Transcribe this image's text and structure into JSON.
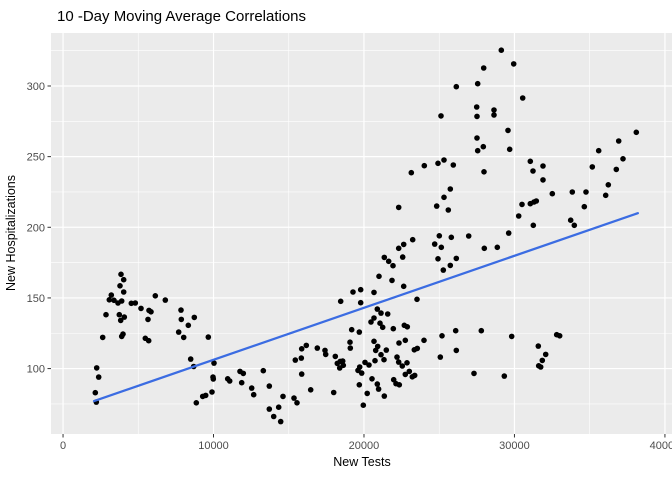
{
  "chart_data": {
    "type": "scatter",
    "title": "10 -Day Moving Average Correlations",
    "xlabel": "New Tests",
    "ylabel": "New Hospitalizations",
    "x_ticks": [
      0,
      10000,
      20000,
      30000,
      40000
    ],
    "y_ticks": [
      100,
      150,
      200,
      250,
      300
    ],
    "x_minor": [
      5000,
      15000,
      25000,
      35000
    ],
    "y_minor": [
      75,
      125,
      175,
      225,
      275,
      325
    ],
    "xlim": [
      -800,
      40470
    ],
    "ylim": [
      53.7,
      337.5
    ],
    "grid": true,
    "legend": "none",
    "trend_line": {
      "type": "linear",
      "x1": 2060,
      "y1": 77,
      "x2": 38200,
      "y2": 210
    },
    "points": [
      [
        29127,
        325.3
      ],
      [
        29951,
        315.6
      ],
      [
        27957,
        312.7
      ],
      [
        27559,
        301.6
      ],
      [
        26136,
        299.5
      ],
      [
        30549,
        291.5
      ],
      [
        27492,
        285.1
      ],
      [
        28642,
        283.0
      ],
      [
        28642,
        279.5
      ],
      [
        27512,
        278.5
      ],
      [
        25119,
        278.8
      ],
      [
        29572,
        268.6
      ],
      [
        27512,
        263.2
      ],
      [
        27930,
        257.0
      ],
      [
        27559,
        254.2
      ],
      [
        29685,
        255.2
      ],
      [
        38096,
        267.2
      ],
      [
        36926,
        261.1
      ],
      [
        35597,
        254.2
      ],
      [
        37212,
        248.5
      ],
      [
        31054,
        246.7
      ],
      [
        31898,
        243.4
      ],
      [
        35174,
        242.7
      ],
      [
        36767,
        241.0
      ],
      [
        25318,
        247.6
      ],
      [
        24919,
        245.3
      ],
      [
        24009,
        243.6
      ],
      [
        25936,
        244.1
      ],
      [
        23145,
        238.6
      ],
      [
        31233,
        239.8
      ],
      [
        27977,
        239.3
      ],
      [
        31898,
        233.5
      ],
      [
        36235,
        230.1
      ],
      [
        25737,
        227.1
      ],
      [
        32516,
        223.8
      ],
      [
        33845,
        225.0
      ],
      [
        34755,
        225.0
      ],
      [
        36062,
        222.6
      ],
      [
        25318,
        221.2
      ],
      [
        24832,
        215.0
      ],
      [
        22307,
        214.1
      ],
      [
        25603,
        212.2
      ],
      [
        30503,
        216.2
      ],
      [
        31300,
        217.9
      ],
      [
        31054,
        216.7
      ],
      [
        31453,
        218.6
      ],
      [
        30284,
        208.0
      ],
      [
        34642,
        214.6
      ],
      [
        31253,
        201.4
      ],
      [
        33739,
        205.0
      ],
      [
        33978,
        201.4
      ],
      [
        3854,
        166.7
      ],
      [
        4033,
        162.9
      ],
      [
        3787,
        158.6
      ],
      [
        4033,
        154.2
      ],
      [
        3210,
        152.0
      ],
      [
        3077,
        148.7
      ],
      [
        3389,
        148.3
      ],
      [
        3900,
        147.8
      ],
      [
        3655,
        146.4
      ],
      [
        4539,
        146.2
      ],
      [
        4804,
        146.4
      ],
      [
        2857,
        138.1
      ],
      [
        3741,
        138.1
      ],
      [
        4073,
        136.4
      ],
      [
        3834,
        134.1
      ],
      [
        5183,
        142.6
      ],
      [
        5715,
        141.2
      ],
      [
        6133,
        151.5
      ],
      [
        6798,
        148.5
      ],
      [
        5648,
        134.8
      ],
      [
        5848,
        140.2
      ],
      [
        2638,
        122.1
      ],
      [
        3987,
        124.4
      ],
      [
        3900,
        122.8
      ],
      [
        5468,
        121.4
      ],
      [
        5694,
        119.7
      ],
      [
        7841,
        141.4
      ],
      [
        7861,
        134.8
      ],
      [
        8725,
        136.2
      ],
      [
        8326,
        130.6
      ],
      [
        7688,
        125.8
      ],
      [
        8021,
        122.1
      ],
      [
        9655,
        122.3
      ],
      [
        8486,
        106.7
      ],
      [
        8685,
        101.5
      ],
      [
        2239,
        100.5
      ],
      [
        2372,
        94.0
      ],
      [
        2146,
        82.9
      ],
      [
        2213,
        76.3
      ],
      [
        8858,
        75.8
      ],
      [
        9283,
        80.3
      ],
      [
        9482,
        81.0
      ],
      [
        9901,
        83.4
      ],
      [
        9987,
        92.6
      ],
      [
        10034,
        103.9
      ],
      [
        9967,
        94.0
      ],
      [
        10944,
        92.8
      ],
      [
        11077,
        91.2
      ],
      [
        11762,
        98.0
      ],
      [
        11875,
        90.0
      ],
      [
        11981,
        96.6
      ],
      [
        12539,
        86.2
      ],
      [
        12672,
        81.5
      ],
      [
        13310,
        98.5
      ],
      [
        13709,
        87.6
      ],
      [
        13709,
        71.3
      ],
      [
        14001,
        66.1
      ],
      [
        14333,
        72.7
      ],
      [
        14619,
        80.3
      ],
      [
        15436,
        106.0
      ],
      [
        15835,
        107.4
      ],
      [
        15862,
        96.1
      ],
      [
        15350,
        79.1
      ],
      [
        15549,
        75.8
      ],
      [
        16460,
        85.0
      ],
      [
        15862,
        114.0
      ],
      [
        16167,
        116.4
      ],
      [
        16898,
        114.5
      ],
      [
        17410,
        112.9
      ],
      [
        17456,
        110.0
      ],
      [
        18094,
        108.6
      ],
      [
        18427,
        105.1
      ],
      [
        18227,
        103.7
      ],
      [
        18586,
        105.3
      ],
      [
        18626,
        102.3
      ],
      [
        18387,
        100.4
      ],
      [
        19071,
        118.7
      ],
      [
        19091,
        114.5
      ],
      [
        19603,
        98.7
      ],
      [
        19716,
        101.1
      ],
      [
        19270,
        154.2
      ],
      [
        19781,
        155.8
      ],
      [
        18453,
        147.6
      ],
      [
        19781,
        146.6
      ],
      [
        19183,
        127.5
      ],
      [
        19688,
        125.8
      ],
      [
        17987,
        83.1
      ],
      [
        19688,
        88.5
      ],
      [
        19848,
        96.8
      ],
      [
        14466,
        62.5
      ],
      [
        23236,
        191.2
      ],
      [
        25004,
        194.0
      ],
      [
        25802,
        192.9
      ],
      [
        26958,
        193.8
      ],
      [
        24698,
        188.1
      ],
      [
        25137,
        185.8
      ],
      [
        22307,
        185.1
      ],
      [
        22639,
        187.9
      ],
      [
        22573,
        178.9
      ],
      [
        21350,
        178.7
      ],
      [
        21643,
        175.9
      ],
      [
        21929,
        172.8
      ],
      [
        24919,
        177.7
      ],
      [
        25271,
        169.7
      ],
      [
        25737,
        173.0
      ],
      [
        26136,
        178.0
      ],
      [
        27997,
        185.1
      ],
      [
        28861,
        185.8
      ],
      [
        29618,
        195.9
      ],
      [
        20998,
        165.3
      ],
      [
        21862,
        162.4
      ],
      [
        22639,
        158.2
      ],
      [
        20666,
        153.9
      ],
      [
        23523,
        149.0
      ],
      [
        20885,
        142.1
      ],
      [
        21131,
        139.3
      ],
      [
        21576,
        138.6
      ],
      [
        20666,
        135.8
      ],
      [
        20466,
        133.0
      ],
      [
        21064,
        132.1
      ],
      [
        21244,
        129.2
      ],
      [
        21949,
        128.2
      ],
      [
        22679,
        130.6
      ],
      [
        22746,
        120.0
      ],
      [
        22327,
        118.1
      ],
      [
        20666,
        119.3
      ],
      [
        20911,
        115.7
      ],
      [
        20779,
        112.9
      ],
      [
        21483,
        113.1
      ],
      [
        21131,
        109.8
      ],
      [
        21330,
        106.3
      ],
      [
        20732,
        105.6
      ],
      [
        20333,
        102.5
      ],
      [
        20068,
        104.4
      ],
      [
        22194,
        108.1
      ],
      [
        22307,
        104.6
      ],
      [
        22858,
        104.1
      ],
      [
        22546,
        101.8
      ],
      [
        23011,
        98.0
      ],
      [
        22746,
        95.9
      ],
      [
        23211,
        94.2
      ],
      [
        23370,
        95.2
      ],
      [
        21975,
        92.1
      ],
      [
        22128,
        89.3
      ],
      [
        22347,
        88.5
      ],
      [
        20533,
        92.8
      ],
      [
        20885,
        89.0
      ],
      [
        20971,
        85.5
      ],
      [
        20214,
        82.4
      ],
      [
        21350,
        80.5
      ],
      [
        19955,
        74.1
      ],
      [
        23343,
        113.3
      ],
      [
        23542,
        114.3
      ],
      [
        23987,
        120.0
      ],
      [
        22878,
        129.6
      ],
      [
        25184,
        123.2
      ],
      [
        26136,
        112.9
      ],
      [
        25071,
        108.1
      ],
      [
        26096,
        126.8
      ],
      [
        27797,
        126.8
      ],
      [
        27312,
        96.6
      ],
      [
        29325,
        94.7
      ],
      [
        29817,
        122.8
      ],
      [
        31585,
        115.9
      ],
      [
        32076,
        110.0
      ],
      [
        31851,
        105.8
      ],
      [
        31611,
        102.0
      ],
      [
        31744,
        101.1
      ],
      [
        32807,
        124.0
      ],
      [
        33006,
        123.2
      ]
    ]
  },
  "colors": {
    "background": "#ffffff",
    "panel_bg": "#ebebeb",
    "grid_major": "#ffffff",
    "grid_minor": "#ffffff",
    "point": "#000000",
    "trend": "#3b6ce2",
    "tick_mark": "#333333",
    "tick_label": "#4d4d4d",
    "title": "#000000"
  }
}
